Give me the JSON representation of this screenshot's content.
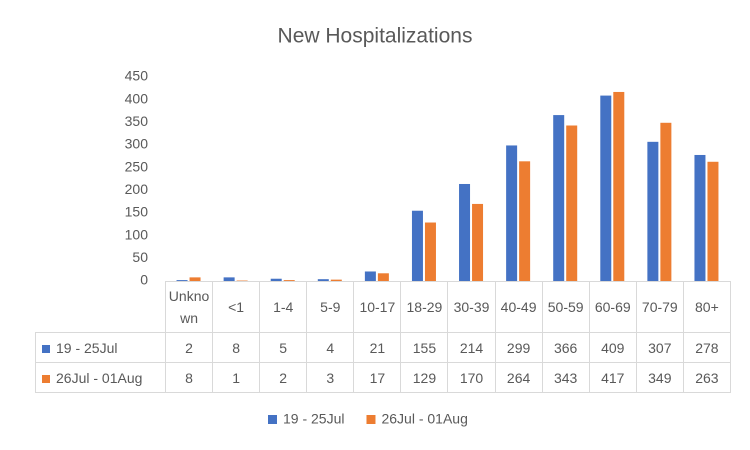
{
  "chart_data": {
    "type": "bar",
    "title": "New Hospitalizations",
    "categories": [
      "Unknown",
      "<1",
      "1-4",
      "5-9",
      "10-17",
      "18-29",
      "30-39",
      "40-49",
      "50-59",
      "60-69",
      "70-79",
      "80+"
    ],
    "series": [
      {
        "name": "19 - 25Jul",
        "color": "#4472c4",
        "values": [
          2,
          8,
          5,
          4,
          21,
          155,
          214,
          299,
          366,
          409,
          307,
          278
        ]
      },
      {
        "name": "26Jul - 01Aug",
        "color": "#ed7d31",
        "values": [
          8,
          1,
          2,
          3,
          17,
          129,
          170,
          264,
          343,
          417,
          349,
          263
        ]
      }
    ],
    "ylim": [
      0,
      450
    ],
    "yticks": [
      0,
      50,
      100,
      150,
      200,
      250,
      300,
      350,
      400,
      450
    ],
    "grid": false,
    "data_table": true,
    "legend": "bottom"
  }
}
